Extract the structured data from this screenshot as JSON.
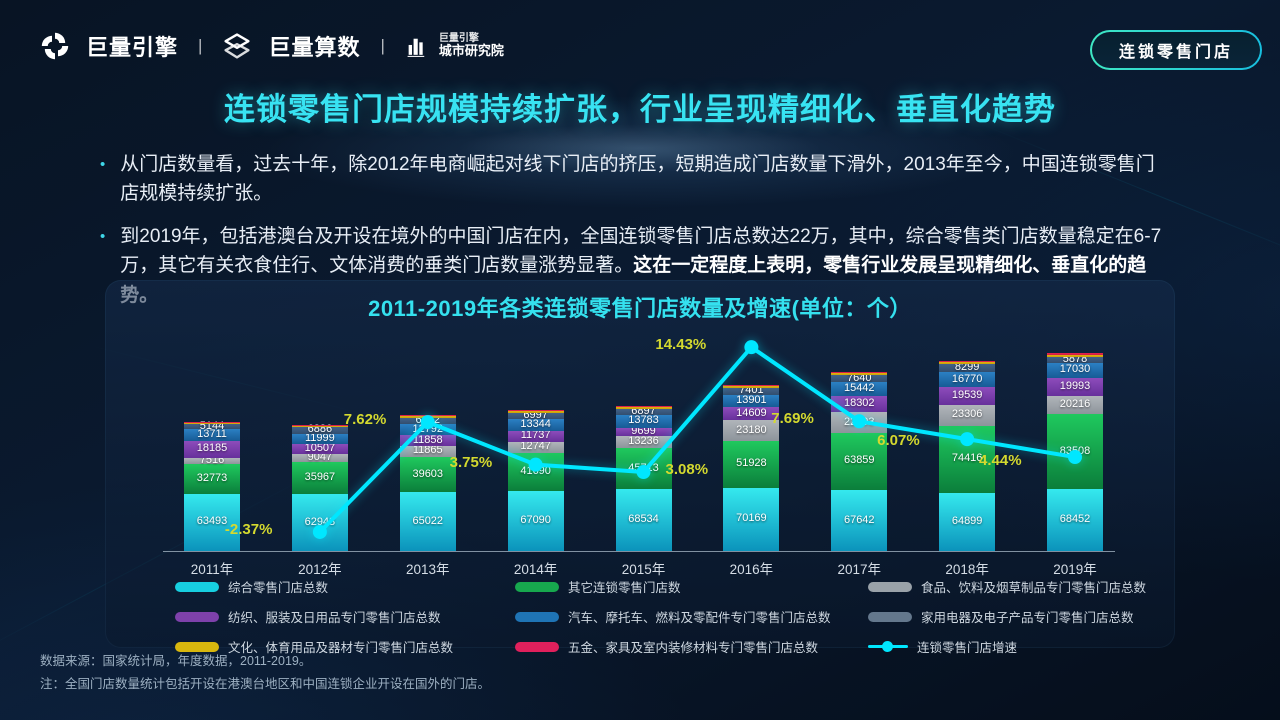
{
  "header": {
    "logo1": "巨量引擎",
    "logo2": "巨量算数",
    "separator": "|",
    "institute_line1": "巨量引擎",
    "institute_line2": "城市研究院",
    "badge": "连锁零售门店",
    "icons": [
      "pinwheel-logo-icon",
      "diamond-logo-icon",
      "city-buildings-icon"
    ]
  },
  "title": "连锁零售门店规模持续扩张，行业呈现精细化、垂直化趋势",
  "bullets": [
    {
      "text": "从门店数量看，过去十年，除2012年电商崛起对线下门店的挤压，短期造成门店数量下滑外，2013年至今，中国连锁零售门店规模持续扩张。",
      "bold": ""
    },
    {
      "text": "到2019年，包括港澳台及开设在境外的中国门店在内，全国连锁零售门店总数达22万，其中，综合零售类门店数量稳定在6-7万，其它有关衣食住行、文体消费的垂类门店数量涨势显著。",
      "bold": "这在一定程度上表明，零售行业发展呈现精细化、垂直化的趋势。"
    }
  ],
  "chart_data": {
    "type": "bar",
    "subtype": "stacked-bar-with-line",
    "title": "2011-2019年各类连锁零售门店数量及增速(单位：个）",
    "categories": [
      "2011年",
      "2012年",
      "2013年",
      "2014年",
      "2015年",
      "2016年",
      "2017年",
      "2018年",
      "2019年"
    ],
    "series": [
      {
        "name": "综合零售门店总数",
        "color": "#35e9ee",
        "color2": "#0b93bb",
        "values": [
          63493,
          62948,
          65022,
          67090,
          68534,
          70169,
          67642,
          64899,
          68452
        ]
      },
      {
        "name": "其它连锁零售门店数",
        "color": "#1fc95e",
        "color2": "#0b7e3b",
        "values": [
          32773,
          35967,
          39603,
          41690,
          45713,
          51928,
          63859,
          74416,
          83508
        ]
      },
      {
        "name": "食品、饮料及烟草制品专门零售门店总数",
        "color": "#b0b5ba",
        "color2": "#8d949b",
        "values": [
          7516,
          9047,
          11865,
          12747,
          13236,
          23180,
          22393,
          23306,
          20216
        ]
      },
      {
        "name": "纺织、服装及日用品专门零售门店总数",
        "color": "#8d4cbb",
        "color2": "#67309b",
        "values": [
          18185,
          10507,
          11858,
          11737,
          9699,
          14609,
          18302,
          19539,
          19993
        ]
      },
      {
        "name": "汽车、摩托车、燃料及零配件专门零售门店总数",
        "color": "#2b80c4",
        "color2": "#175b95",
        "values": [
          13711,
          11999,
          12792,
          13344,
          13783,
          13901,
          15442,
          16770,
          17030
        ]
      },
      {
        "name": "家用电器及电子产品专门零售门店总数",
        "color": "#41628a",
        "color2": "#324e6e",
        "values": [
          5144,
          6886,
          6982,
          6997,
          6897,
          7401,
          7640,
          8299,
          5878
        ]
      },
      {
        "name": "文化、体育用品及器材专门零售门店总数",
        "color": "#e2b40e",
        "color2": "#c79f08",
        "estimated": true,
        "show_labels": false,
        "values": [
          1800,
          1900,
          2000,
          2100,
          2200,
          2400,
          2600,
          2800,
          3000
        ]
      },
      {
        "name": "五金、家具及室内装修材料专门零售门店总数",
        "color": "#e8254e",
        "color2": "#d11a45",
        "estimated": true,
        "show_labels": false,
        "values": [
          900,
          950,
          1000,
          1050,
          1100,
          1200,
          1300,
          1400,
          1500
        ]
      }
    ],
    "line": {
      "name": "连锁零售门店增速",
      "color": "#00e7ff",
      "label_color": "#d4d92f",
      "values": [
        null,
        -2.37,
        7.62,
        3.75,
        3.08,
        14.43,
        7.69,
        6.07,
        4.44
      ],
      "display": [
        "",
        "-2.37%",
        "7.62%",
        "3.75%",
        "3.08%",
        "14.43%",
        "7.69%",
        "6.07%",
        "4.44%"
      ]
    },
    "legend": [
      {
        "label": "综合零售门店总数",
        "color": "#17cfe0",
        "type": "bar"
      },
      {
        "label": "其它连锁零售门店数",
        "color": "#17a84e",
        "type": "bar"
      },
      {
        "label": "食品、饮料及烟草制品专门零售门店总数",
        "color": "#9aa2a9",
        "type": "bar"
      },
      {
        "label": "纺织、服装及日用品专门零售门店总数",
        "color": "#7e41ab",
        "type": "bar"
      },
      {
        "label": "汽车、摩托车、燃料及零配件专门零售门店总数",
        "color": "#1f74b5",
        "type": "bar"
      },
      {
        "label": "家用电器及电子产品专门零售门店总数",
        "color": "#64788d",
        "type": "bar"
      },
      {
        "label": "文化、体育用品及器材专门零售门店总数",
        "color": "#d8b70e",
        "type": "bar"
      },
      {
        "label": "五金、家具及室内装修材料专门零售门店总数",
        "color": "#e0205c",
        "type": "bar"
      },
      {
        "label": "连锁零售门店增速",
        "color": "#00e7ff",
        "type": "line"
      }
    ],
    "axis": {
      "x_labels_visible": true,
      "y_axis_visible": false,
      "grid": false,
      "legend_position": "bottom"
    }
  },
  "footnotes": [
    "数据来源：国家统计局，年度数据，2011-2019。",
    "注：全国门店数量统计包括开设在港澳台地区和中国连锁企业开设在国外的门店。"
  ]
}
